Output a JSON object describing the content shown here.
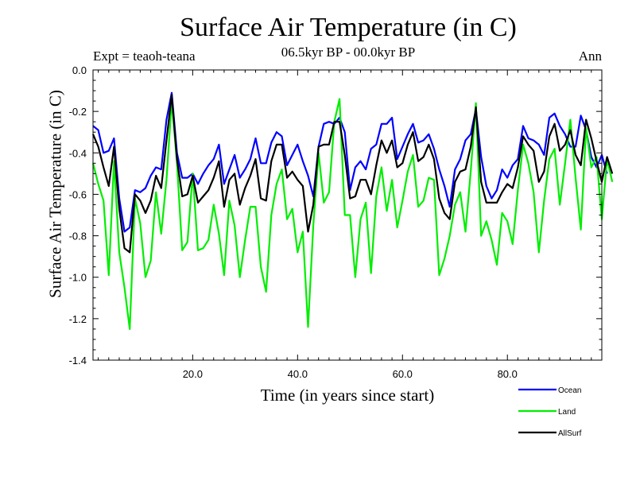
{
  "chart_data": {
    "type": "line",
    "title": "Surface Air Temperature (in C)",
    "subtitle": "06.5kyr BP - 00.0kyr BP",
    "left_label": "Expt = teaoh-teana",
    "right_label": "Ann",
    "xlabel": "Time (in years since start)",
    "ylabel": "Surface Air Temperature (in C)",
    "xlim": [
      1,
      98
    ],
    "ylim": [
      -1.4,
      0.0
    ],
    "x_ticks": [
      20,
      40,
      60,
      80
    ],
    "x_tick_labels": [
      "20.0",
      "40.0",
      "60.0",
      "80.0"
    ],
    "y_ticks": [
      0.0,
      -0.2,
      -0.4,
      -0.6,
      -0.8,
      -1.0,
      -1.2,
      -1.4
    ],
    "y_tick_labels": [
      "0.0",
      "-0.2",
      "-0.4",
      "-0.6",
      "-0.8",
      "-1.0",
      "-1.2",
      "-1.4"
    ],
    "x_start": 1,
    "x_step": 1,
    "series": [
      {
        "name": "Ocean",
        "color": "#0000ff",
        "values": [
          -0.27,
          -0.29,
          -0.4,
          -0.39,
          -0.33,
          -0.62,
          -0.78,
          -0.76,
          -0.58,
          -0.59,
          -0.57,
          -0.51,
          -0.47,
          -0.48,
          -0.24,
          -0.11,
          -0.4,
          -0.52,
          -0.52,
          -0.5,
          -0.55,
          -0.5,
          -0.46,
          -0.43,
          -0.36,
          -0.55,
          -0.48,
          -0.41,
          -0.52,
          -0.48,
          -0.43,
          -0.33,
          -0.45,
          -0.45,
          -0.35,
          -0.3,
          -0.32,
          -0.46,
          -0.41,
          -0.36,
          -0.44,
          -0.51,
          -0.61,
          -0.37,
          -0.26,
          -0.25,
          -0.26,
          -0.23,
          -0.3,
          -0.58,
          -0.47,
          -0.44,
          -0.48,
          -0.38,
          -0.36,
          -0.26,
          -0.26,
          -0.23,
          -0.43,
          -0.37,
          -0.31,
          -0.26,
          -0.35,
          -0.34,
          -0.31,
          -0.38,
          -0.48,
          -0.56,
          -0.66,
          -0.48,
          -0.43,
          -0.34,
          -0.31,
          -0.19,
          -0.42,
          -0.56,
          -0.62,
          -0.58,
          -0.48,
          -0.52,
          -0.46,
          -0.43,
          -0.27,
          -0.33,
          -0.34,
          -0.36,
          -0.41,
          -0.23,
          -0.21,
          -0.27,
          -0.31,
          -0.37,
          -0.37,
          -0.22,
          -0.29,
          -0.42,
          -0.47,
          -0.41,
          -0.5
        ]
      },
      {
        "name": "Land",
        "color": "#00ee00",
        "values": [
          -0.45,
          -0.55,
          -0.63,
          -0.99,
          -0.44,
          -0.88,
          -1.05,
          -1.25,
          -0.62,
          -0.74,
          -1.0,
          -0.92,
          -0.59,
          -0.79,
          -0.53,
          -0.15,
          -0.45,
          -0.87,
          -0.83,
          -0.5,
          -0.87,
          -0.86,
          -0.82,
          -0.65,
          -0.79,
          -0.99,
          -0.63,
          -0.75,
          -1.0,
          -0.82,
          -0.66,
          -0.66,
          -0.95,
          -1.07,
          -0.7,
          -0.55,
          -0.48,
          -0.72,
          -0.67,
          -0.88,
          -0.78,
          -1.24,
          -0.75,
          -0.4,
          -0.64,
          -0.59,
          -0.25,
          -0.14,
          -0.7,
          -0.7,
          -1.0,
          -0.72,
          -0.64,
          -0.98,
          -0.61,
          -0.47,
          -0.68,
          -0.53,
          -0.76,
          -0.63,
          -0.49,
          -0.41,
          -0.66,
          -0.63,
          -0.52,
          -0.53,
          -0.99,
          -0.91,
          -0.8,
          -0.65,
          -0.59,
          -0.78,
          -0.49,
          -0.16,
          -0.8,
          -0.73,
          -0.82,
          -0.94,
          -0.69,
          -0.73,
          -0.84,
          -0.58,
          -0.36,
          -0.45,
          -0.59,
          -0.88,
          -0.63,
          -0.43,
          -0.38,
          -0.65,
          -0.45,
          -0.24,
          -0.52,
          -0.77,
          -0.28,
          -0.47,
          -0.42,
          -0.72,
          -0.43,
          -0.54
        ]
      },
      {
        "name": "AllSurf",
        "color": "#000000",
        "values": [
          -0.31,
          -0.37,
          -0.47,
          -0.56,
          -0.37,
          -0.67,
          -0.86,
          -0.88,
          -0.6,
          -0.63,
          -0.69,
          -0.63,
          -0.51,
          -0.57,
          -0.34,
          -0.12,
          -0.43,
          -0.61,
          -0.6,
          -0.51,
          -0.64,
          -0.61,
          -0.58,
          -0.52,
          -0.44,
          -0.66,
          -0.53,
          -0.5,
          -0.65,
          -0.57,
          -0.51,
          -0.43,
          -0.62,
          -0.63,
          -0.44,
          -0.36,
          -0.36,
          -0.52,
          -0.49,
          -0.53,
          -0.56,
          -0.78,
          -0.65,
          -0.37,
          -0.36,
          -0.36,
          -0.25,
          -0.25,
          -0.41,
          -0.62,
          -0.61,
          -0.53,
          -0.53,
          -0.6,
          -0.46,
          -0.34,
          -0.4,
          -0.34,
          -0.47,
          -0.45,
          -0.36,
          -0.3,
          -0.44,
          -0.42,
          -0.36,
          -0.43,
          -0.62,
          -0.69,
          -0.72,
          -0.54,
          -0.49,
          -0.48,
          -0.37,
          -0.18,
          -0.54,
          -0.64,
          -0.64,
          -0.64,
          -0.59,
          -0.55,
          -0.57,
          -0.47,
          -0.32,
          -0.36,
          -0.39,
          -0.54,
          -0.49,
          -0.32,
          -0.26,
          -0.39,
          -0.36,
          -0.29,
          -0.41,
          -0.46,
          -0.24,
          -0.33,
          -0.44,
          -0.54,
          -0.42,
          -0.5
        ]
      }
    ],
    "legend_position": "bottom-right"
  }
}
